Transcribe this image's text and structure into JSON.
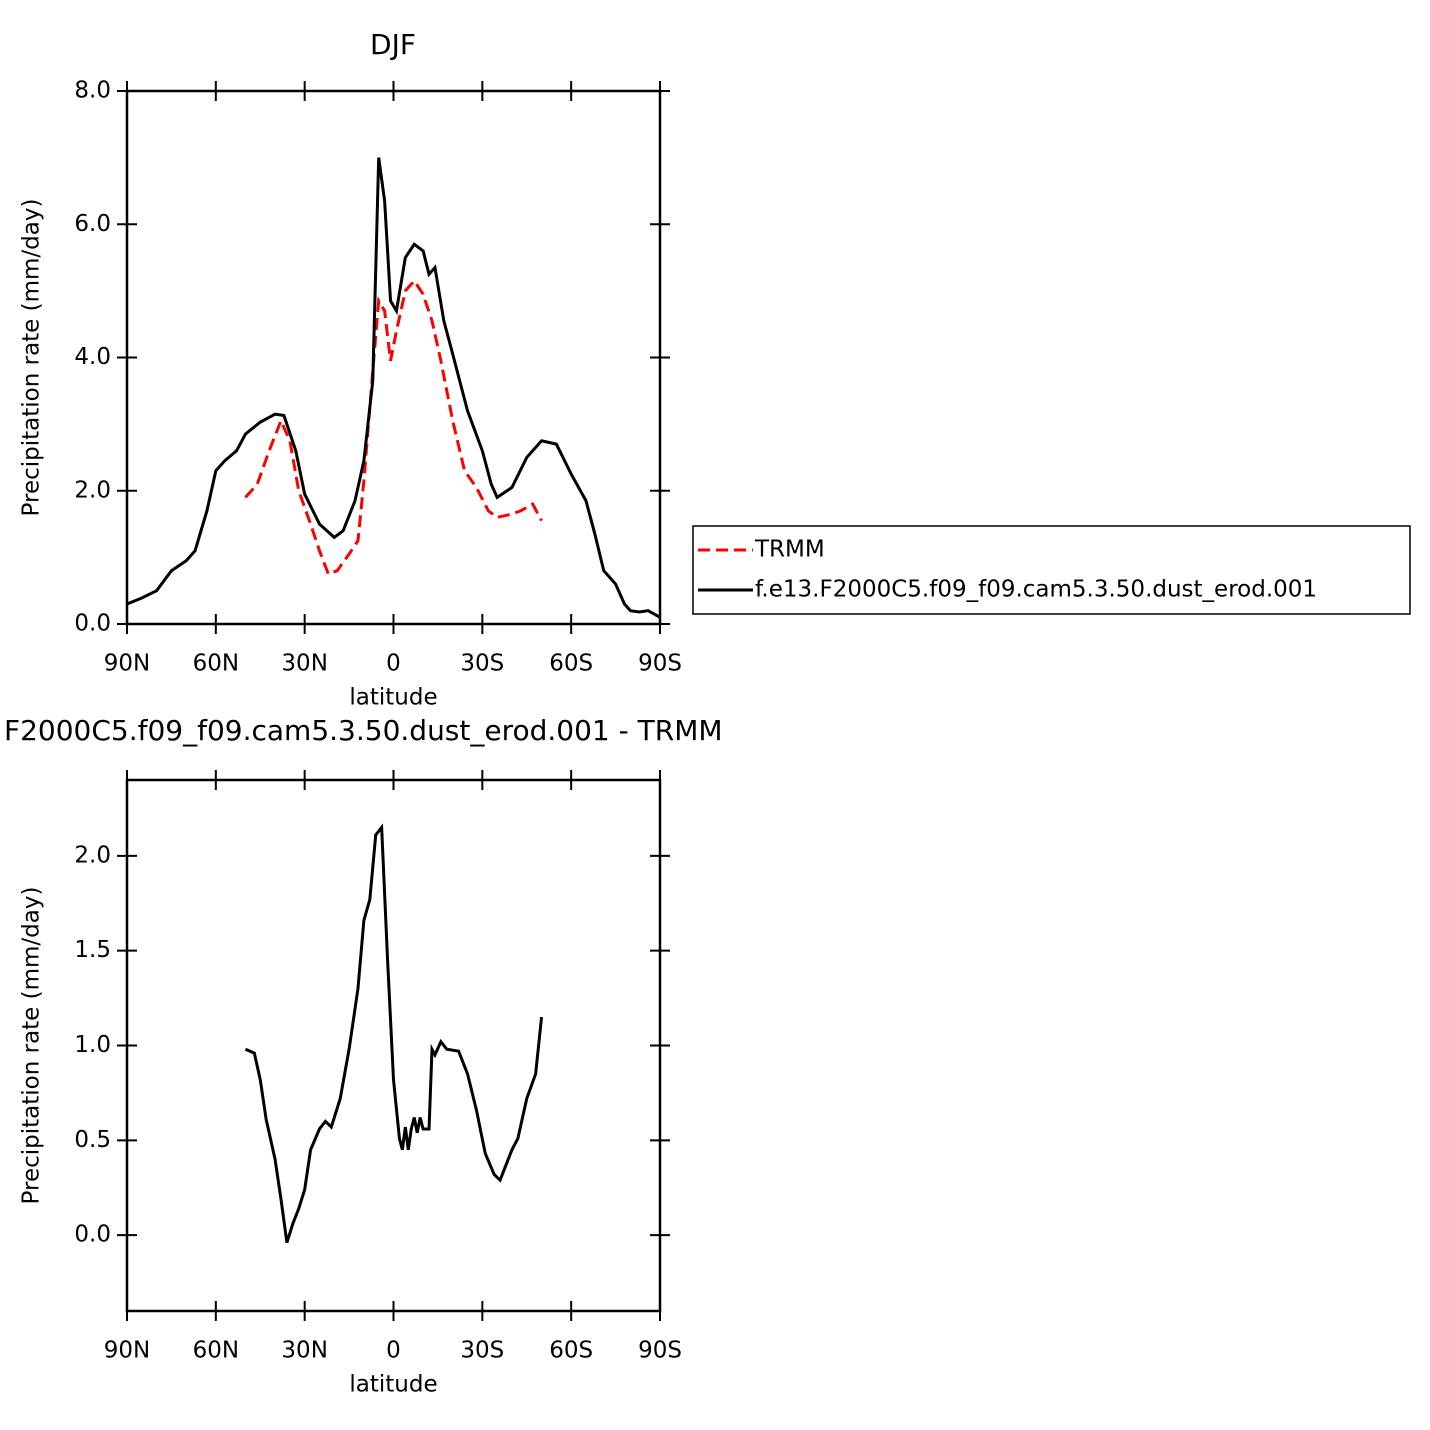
{
  "chart_data": [
    {
      "type": "line",
      "title": "DJF",
      "xlabel": "latitude",
      "ylabel": "Precipitation rate (mm/day)",
      "xlim": [
        90,
        -90
      ],
      "xticks": [
        {
          "value": 90,
          "label": "90N"
        },
        {
          "value": 60,
          "label": "60N"
        },
        {
          "value": 30,
          "label": "30N"
        },
        0,
        {
          "value": -30,
          "label": "30S"
        },
        {
          "value": -60,
          "label": "60S"
        },
        {
          "value": -90,
          "label": "90S"
        }
      ],
      "ylim": [
        0,
        8
      ],
      "yticks": [
        {
          "value": 0,
          "label": "0.0"
        },
        {
          "value": 2,
          "label": "2.0"
        },
        {
          "value": 4,
          "label": "4.0"
        },
        {
          "value": 6,
          "label": "6.0"
        },
        {
          "value": 8,
          "label": "8.0"
        }
      ],
      "legend": "right",
      "series": [
        {
          "name": "TRMM",
          "color": "#ff0000",
          "dashed": true,
          "x": [
            50,
            46,
            42,
            38,
            35,
            32,
            28,
            25,
            22,
            19,
            15,
            12,
            10,
            7,
            5,
            3,
            1,
            -1,
            -4,
            -7,
            -10,
            -13,
            -16,
            -20,
            -24,
            -28,
            -32,
            -35,
            -40,
            -43,
            -47,
            -50
          ],
          "values": [
            1.9,
            2.1,
            2.6,
            3.05,
            2.75,
            2.0,
            1.5,
            1.1,
            0.75,
            0.8,
            1.05,
            1.25,
            2.15,
            3.8,
            4.85,
            4.7,
            3.95,
            4.4,
            5.0,
            5.15,
            4.95,
            4.55,
            3.95,
            3.05,
            2.3,
            2.05,
            1.7,
            1.6,
            1.65,
            1.7,
            1.8,
            1.55
          ]
        },
        {
          "name": "f.e13.F2000C5.f09_f09.cam5.3.50.dust_erod.001",
          "color": "#000000",
          "dashed": false,
          "x": [
            90,
            85,
            80,
            75,
            70,
            67,
            63,
            60,
            57,
            53,
            50,
            45,
            40,
            37,
            33,
            30,
            25,
            20,
            17,
            13,
            10,
            7,
            5,
            3,
            1,
            -1,
            -4,
            -7,
            -10,
            -12,
            -14,
            -17,
            -20,
            -25,
            -30,
            -33,
            -35,
            -40,
            -45,
            -50,
            -55,
            -60,
            -65,
            -68,
            -71,
            -75,
            -78,
            -80,
            -83,
            -86,
            -90
          ],
          "values": [
            0.3,
            0.39,
            0.5,
            0.8,
            0.95,
            1.1,
            1.7,
            2.3,
            2.45,
            2.6,
            2.85,
            3.03,
            3.15,
            3.13,
            2.6,
            1.95,
            1.5,
            1.3,
            1.4,
            1.85,
            2.45,
            3.65,
            7.0,
            6.35,
            4.85,
            4.7,
            5.5,
            5.7,
            5.6,
            5.25,
            5.35,
            4.55,
            4.05,
            3.2,
            2.6,
            2.1,
            1.9,
            2.05,
            2.5,
            2.75,
            2.7,
            2.25,
            1.85,
            1.35,
            0.8,
            0.6,
            0.3,
            0.2,
            0.18,
            0.2,
            0.1
          ]
        }
      ]
    },
    {
      "type": "line",
      "title": "F2000C5.f09_f09.cam5.3.50.dust_erod.001 - TRMM",
      "xlabel": "latitude",
      "ylabel": "Precipitation rate (mm/day)",
      "xlim": [
        90,
        -90
      ],
      "xticks": [
        {
          "value": 90,
          "label": "90N"
        },
        {
          "value": 60,
          "label": "60N"
        },
        {
          "value": 30,
          "label": "30N"
        },
        0,
        {
          "value": -30,
          "label": "30S"
        },
        {
          "value": -60,
          "label": "60S"
        },
        {
          "value": -90,
          "label": "90S"
        }
      ],
      "ylim": [
        -0.4,
        2.4
      ],
      "yticks": [
        {
          "value": 0,
          "label": "0.0"
        },
        {
          "value": 0.5,
          "label": "0.5"
        },
        {
          "value": 1,
          "label": "1.0"
        },
        {
          "value": 1.5,
          "label": "1.5"
        },
        {
          "value": 2,
          "label": "2.0"
        }
      ],
      "series": [
        {
          "color": "#000000",
          "dashed": false,
          "x": [
            50,
            47,
            45,
            43,
            40,
            38,
            36,
            34,
            32,
            30,
            28,
            25,
            23,
            21,
            18,
            15,
            12,
            10,
            8,
            6,
            4,
            2,
            0,
            -2,
            -3,
            -4,
            -5,
            -6,
            -7,
            -8,
            -9,
            -10,
            -12,
            -13,
            -14,
            -16,
            -18,
            -22,
            -25,
            -28,
            -31,
            -34,
            -36,
            -38,
            -40,
            -42,
            -45,
            -48,
            -50
          ],
          "values": [
            0.98,
            0.96,
            0.82,
            0.61,
            0.4,
            0.19,
            -0.04,
            0.06,
            0.14,
            0.24,
            0.45,
            0.56,
            0.6,
            0.57,
            0.72,
            0.98,
            1.3,
            1.66,
            1.77,
            2.11,
            2.15,
            1.45,
            0.82,
            0.51,
            0.45,
            0.57,
            0.45,
            0.56,
            0.62,
            0.54,
            0.62,
            0.56,
            0.56,
            0.98,
            0.95,
            1.02,
            0.98,
            0.97,
            0.85,
            0.66,
            0.43,
            0.32,
            0.29,
            0.37,
            0.45,
            0.51,
            0.72,
            0.85,
            1.15
          ]
        }
      ]
    }
  ]
}
